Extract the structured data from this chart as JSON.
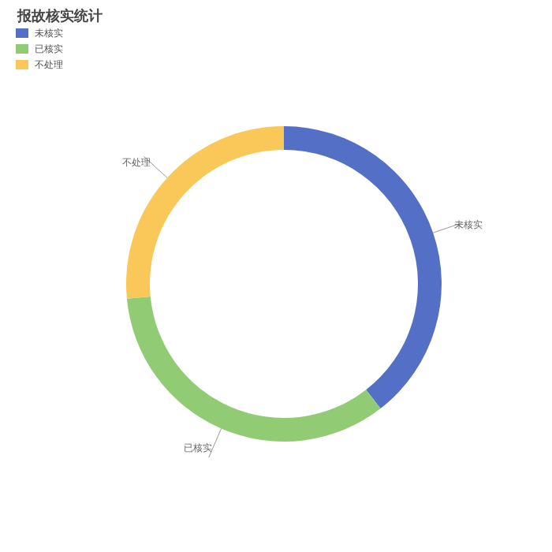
{
  "chart_data": {
    "type": "donut",
    "title": "报故核实统计",
    "categories": [
      "未核实",
      "已核实",
      "不处理"
    ],
    "values": [
      39.5,
      34,
      26.5
    ],
    "colors": [
      "#5470c6",
      "#91cc75",
      "#fac858"
    ],
    "legend": "top left"
  }
}
